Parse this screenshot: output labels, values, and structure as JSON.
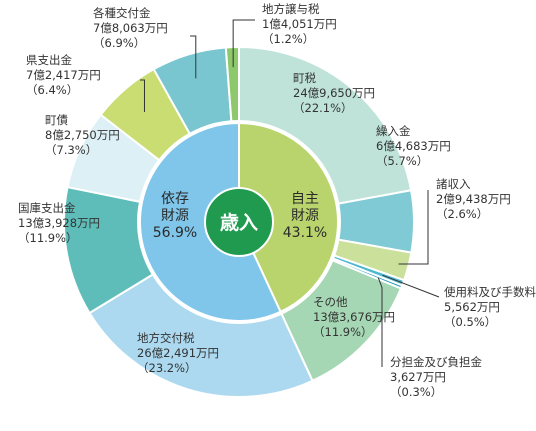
{
  "chart_data": {
    "type": "pie",
    "center_label": "歳入",
    "inner": [
      {
        "name": [
          "依存",
          "財源"
        ],
        "percent": "56.9%",
        "value": 56.9,
        "color": "#7fc6ea"
      },
      {
        "name": [
          "自主",
          "財源"
        ],
        "percent": "43.1%",
        "value": 43.1,
        "color": "#b9d46d"
      }
    ],
    "outer": [
      {
        "name": "町税",
        "amount": "24億9,650万円",
        "percent": "（22.1%）",
        "value": 22.1,
        "color": "#bfe3d8"
      },
      {
        "name": "繰入金",
        "amount": "6億4,683万円",
        "percent": "（5.7%）",
        "value": 5.7,
        "color": "#7fcad4"
      },
      {
        "name": "諸収入",
        "amount": "2億9,438万円",
        "percent": "（2.6%）",
        "value": 2.6,
        "color": "#cbe09a"
      },
      {
        "name": "使用料及び手数料",
        "amount": "5,562万円",
        "percent": "（0.5%）",
        "value": 0.5,
        "color": "#4db8d0"
      },
      {
        "name": "分担金及び負担金",
        "amount": "3,627万円",
        "percent": "（0.3%）",
        "value": 0.3,
        "color": "#2f9fb8"
      },
      {
        "name": "その他",
        "amount": "13億3,676万円",
        "percent": "（11.9%）",
        "value": 11.9,
        "color": "#a6d7b4"
      },
      {
        "name": "地方交付税",
        "amount": "26億2,491万円",
        "percent": "（23.2%）",
        "value": 23.2,
        "color": "#acd9ef"
      },
      {
        "name": "国庫支出金",
        "amount": "13億3,928万円",
        "percent": "（11.9%）",
        "value": 11.9,
        "color": "#5fbdb9"
      },
      {
        "name": "町債",
        "amount": "8億2,750万円",
        "percent": "（7.3%）",
        "value": 7.3,
        "color": "#dcf0f6"
      },
      {
        "name": "県支出金",
        "amount": "7億2,417万円",
        "percent": "（6.4%）",
        "value": 6.4,
        "color": "#c9dd73"
      },
      {
        "name": "各種交付金",
        "amount": "7億8,063万円",
        "percent": "（6.9%）",
        "value": 6.9,
        "color": "#79c6d1"
      },
      {
        "name": "地方譲与税",
        "amount": "1億4,051万円",
        "percent": "（1.2%）",
        "value": 1.2,
        "color": "#8dc96c"
      }
    ]
  }
}
